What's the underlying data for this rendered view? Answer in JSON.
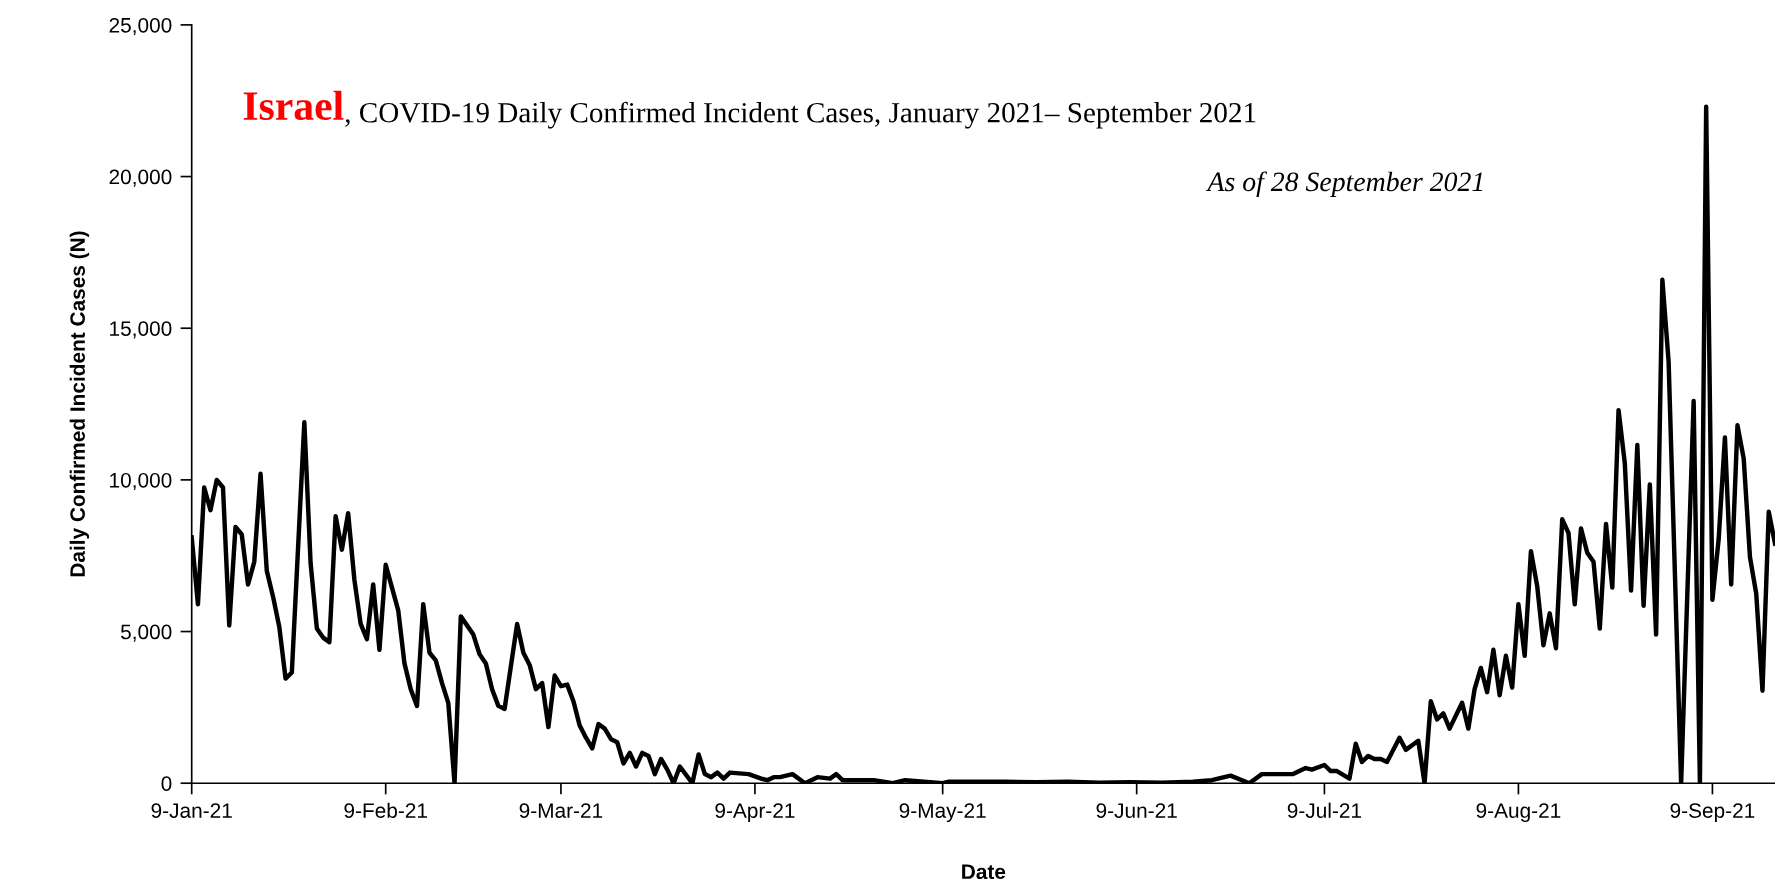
{
  "chart_data": {
    "type": "line",
    "title": "Israel",
    "subtitle": ", COVID-19 Daily Confirmed Incident Cases, January 2021– September 2021",
    "annotations": [
      "As of 28 September 2021"
    ],
    "xlabel": "Date",
    "ylabel": "Daily Confirmed Incident Cases (N)",
    "xlim": [
      "2021-01-09",
      "2021-09-19"
    ],
    "xticks": [
      {
        "value": "2021-01-09",
        "label": "9-Jan-21"
      },
      {
        "value": "2021-02-09",
        "label": "9-Feb-21"
      },
      {
        "value": "2021-03-09",
        "label": "9-Mar-21"
      },
      {
        "value": "2021-04-09",
        "label": "9-Apr-21"
      },
      {
        "value": "2021-05-09",
        "label": "9-May-21"
      },
      {
        "value": "2021-06-09",
        "label": "9-Jun-21"
      },
      {
        "value": "2021-07-09",
        "label": "9-Jul-21"
      },
      {
        "value": "2021-08-09",
        "label": "9-Aug-21"
      },
      {
        "value": "2021-09-09",
        "label": "9-Sep-21"
      }
    ],
    "ylim": [
      0,
      25000
    ],
    "yticks": [
      0,
      {
        "value": 5000,
        "label": "5,000"
      },
      {
        "value": 10000,
        "label": "10,000"
      },
      {
        "value": 15000,
        "label": "15,000"
      },
      {
        "value": 20000,
        "label": "20,000"
      },
      {
        "value": 25000,
        "label": "25,000"
      }
    ],
    "series": [
      {
        "color": "#000000",
        "x": [
          "2021-01-09",
          "2021-01-10",
          "2021-01-11",
          "2021-01-12",
          "2021-01-13",
          "2021-01-14",
          "2021-01-15",
          "2021-01-16",
          "2021-01-17",
          "2021-01-18",
          "2021-01-19",
          "2021-01-20",
          "2021-01-21",
          "2021-01-22",
          "2021-01-23",
          "2021-01-24",
          "2021-01-25",
          "2021-01-27",
          "2021-01-28",
          "2021-01-29",
          "2021-01-30",
          "2021-01-31",
          "2021-02-01",
          "2021-02-02",
          "2021-02-03",
          "2021-02-04",
          "2021-02-05",
          "2021-02-06",
          "2021-02-07",
          "2021-02-08",
          "2021-02-09",
          "2021-02-11",
          "2021-02-12",
          "2021-02-13",
          "2021-02-14",
          "2021-02-15",
          "2021-02-16",
          "2021-02-17",
          "2021-02-18",
          "2021-02-19",
          "2021-02-20",
          "2021-02-21",
          "2021-02-23",
          "2021-02-24",
          "2021-02-25",
          "2021-02-26",
          "2021-02-27",
          "2021-02-28",
          "2021-03-01",
          "2021-03-02",
          "2021-03-03",
          "2021-03-04",
          "2021-03-05",
          "2021-03-06",
          "2021-03-07",
          "2021-03-08",
          "2021-03-09",
          "2021-03-10",
          "2021-03-11",
          "2021-03-12",
          "2021-03-13",
          "2021-03-14",
          "2021-03-15",
          "2021-03-16",
          "2021-03-17",
          "2021-03-18",
          "2021-03-19",
          "2021-03-20",
          "2021-03-21",
          "2021-03-22",
          "2021-03-23",
          "2021-03-24",
          "2021-03-25",
          "2021-03-26",
          "2021-03-27",
          "2021-03-28",
          "2021-03-30",
          "2021-03-31",
          "2021-04-01",
          "2021-04-02",
          "2021-04-03",
          "2021-04-04",
          "2021-04-05",
          "2021-04-08",
          "2021-04-10",
          "2021-04-11",
          "2021-04-12",
          "2021-04-13",
          "2021-04-15",
          "2021-04-17",
          "2021-04-19",
          "2021-04-21",
          "2021-04-22",
          "2021-04-23",
          "2021-04-28",
          "2021-05-01",
          "2021-05-03",
          "2021-05-06",
          "2021-05-09",
          "2021-05-10",
          "2021-05-14",
          "2021-05-19",
          "2021-05-24",
          "2021-05-29",
          "2021-06-03",
          "2021-06-08",
          "2021-06-13",
          "2021-06-18",
          "2021-06-21",
          "2021-06-24",
          "2021-06-27",
          "2021-06-29",
          "2021-07-04",
          "2021-07-06",
          "2021-07-07",
          "2021-07-09",
          "2021-07-10",
          "2021-07-11",
          "2021-07-13",
          "2021-07-14",
          "2021-07-15",
          "2021-07-16",
          "2021-07-17",
          "2021-07-18",
          "2021-07-19",
          "2021-07-21",
          "2021-07-22",
          "2021-07-24",
          "2021-07-25",
          "2021-07-26",
          "2021-07-27",
          "2021-07-28",
          "2021-07-29",
          "2021-07-31",
          "2021-08-01",
          "2021-08-02",
          "2021-08-03",
          "2021-08-04",
          "2021-08-05",
          "2021-08-06",
          "2021-08-07",
          "2021-08-08",
          "2021-08-09",
          "2021-08-10",
          "2021-08-11",
          "2021-08-12",
          "2021-08-13",
          "2021-08-14",
          "2021-08-15",
          "2021-08-16",
          "2021-08-17",
          "2021-08-18",
          "2021-08-19",
          "2021-08-20",
          "2021-08-21",
          "2021-08-22",
          "2021-08-23",
          "2021-08-24",
          "2021-08-25",
          "2021-08-26",
          "2021-08-27",
          "2021-08-28",
          "2021-08-29",
          "2021-08-30",
          "2021-08-31",
          "2021-09-01",
          "2021-09-02",
          "2021-09-04",
          "2021-09-06",
          "2021-09-07",
          "2021-09-08",
          "2021-09-09",
          "2021-09-10",
          "2021-09-11",
          "2021-09-12",
          "2021-09-13",
          "2021-09-14",
          "2021-09-15",
          "2021-09-16",
          "2021-09-17",
          "2021-09-18",
          "2021-09-19"
        ],
        "values": [
          8100,
          5900,
          9750,
          9000,
          10000,
          9750,
          5200,
          8450,
          8200,
          6550,
          7300,
          10200,
          7000,
          6150,
          5150,
          3450,
          3650,
          11900,
          7250,
          5100,
          4800,
          4650,
          8800,
          7700,
          8900,
          6700,
          5250,
          4750,
          6550,
          4400,
          7200,
          5700,
          3950,
          3100,
          2550,
          5900,
          4300,
          4050,
          3300,
          2650,
          0,
          5500,
          4900,
          4250,
          3950,
          3100,
          2550,
          2450,
          3850,
          5250,
          4300,
          3900,
          3100,
          3300,
          1850,
          3550,
          3200,
          3250,
          2700,
          1900,
          1500,
          1150,
          1950,
          1800,
          1450,
          1350,
          650,
          1000,
          550,
          1000,
          900,
          300,
          800,
          450,
          0,
          550,
          0,
          950,
          300,
          200,
          350,
          150,
          350,
          300,
          150,
          100,
          200,
          200,
          300,
          0,
          200,
          150,
          300,
          100,
          100,
          0,
          100,
          50,
          0,
          50,
          50,
          50,
          30,
          50,
          20,
          30,
          20,
          50,
          100,
          250,
          0,
          300,
          300,
          500,
          450,
          600,
          400,
          400,
          150,
          1300,
          700,
          900,
          800,
          800,
          700,
          1500,
          1100,
          1400,
          0,
          2700,
          2100,
          2300,
          1800,
          2650,
          1800,
          3100,
          3800,
          3000,
          4400,
          2900,
          4200,
          3150,
          5900,
          4200,
          7650,
          6500,
          4550,
          5600,
          4450,
          8700,
          8250,
          5900,
          8400,
          7600,
          7300,
          5100,
          8550,
          6450,
          12300,
          10550,
          6350,
          11150,
          5850,
          9850,
          4900,
          16600,
          13900,
          0,
          12600,
          0,
          22300,
          6050,
          8050,
          11400,
          6550,
          11800,
          10700,
          7450,
          6250,
          3050,
          8950,
          7900
        ]
      }
    ]
  }
}
